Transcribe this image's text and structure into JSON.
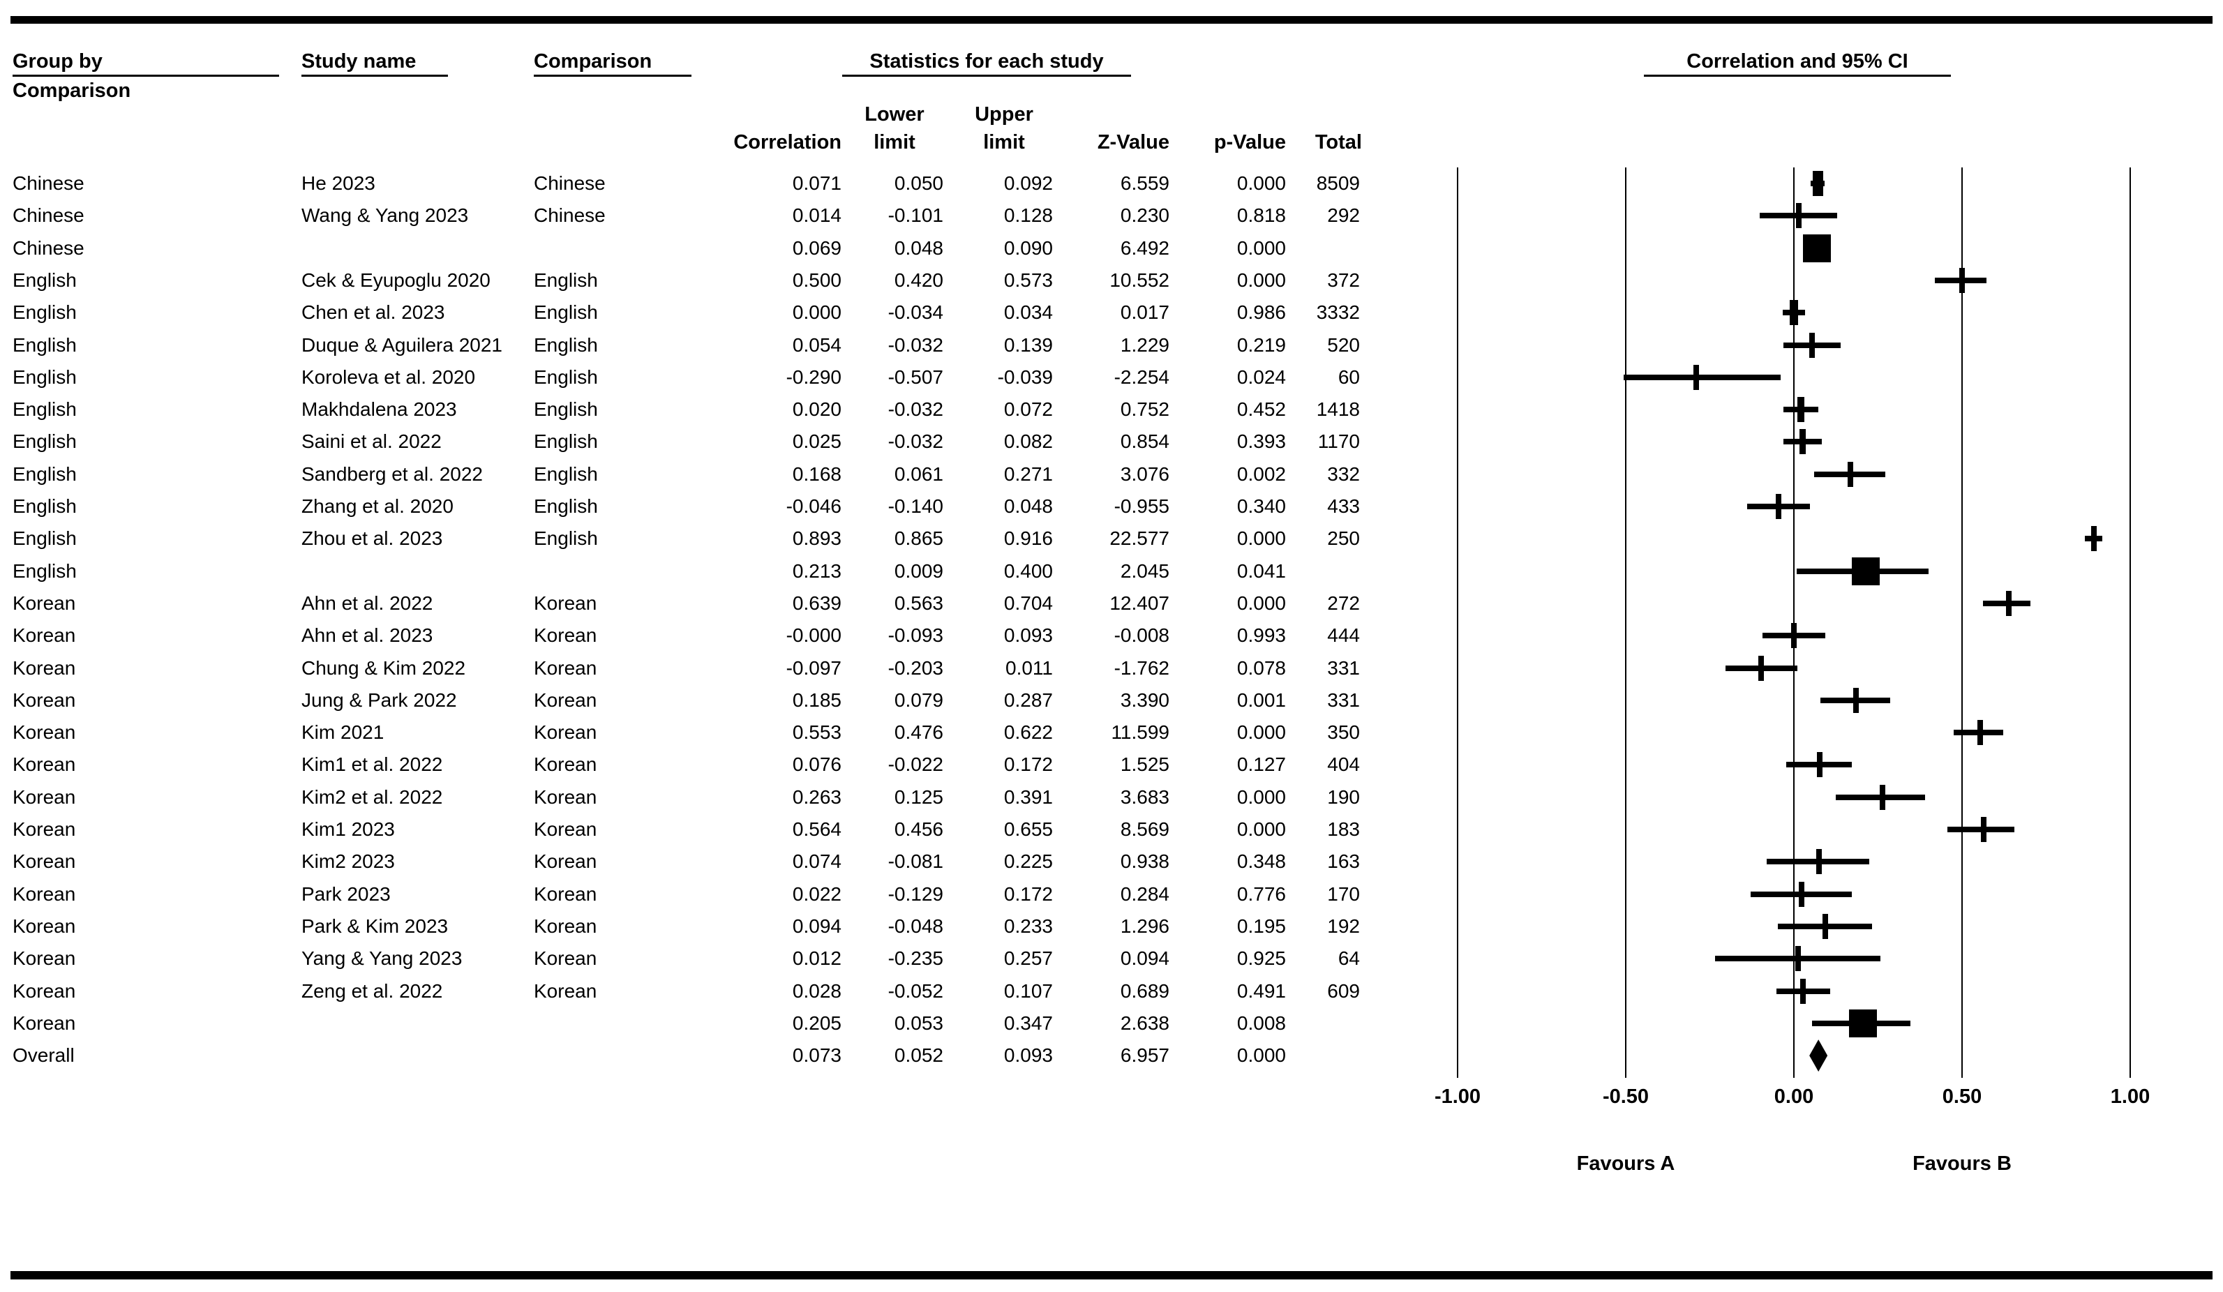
{
  "headers": {
    "group_by_line1": "Group by",
    "group_by_line2": "Comparison",
    "study_name": "Study name",
    "comparison": "Comparison",
    "statistics": "Statistics for each study",
    "plot_title": "Correlation and 95% CI",
    "sub_lower": "Lower",
    "sub_upper": "Upper",
    "col_correlation": "Correlation",
    "col_limit_lower": "limit",
    "col_limit_upper": "limit",
    "col_z": "Z-Value",
    "col_p": "p-Value",
    "col_total": "Total"
  },
  "axis": {
    "tick_labels": [
      "-1.00",
      "-0.50",
      "0.00",
      "0.50",
      "1.00"
    ],
    "tick_values": [
      -1,
      -0.5,
      0,
      0.5,
      1
    ],
    "favours_a": "Favours A",
    "favours_b": "Favours B"
  },
  "colors": {
    "ink": "#000000",
    "background": "#ffffff"
  },
  "chart_data": {
    "type": "forest",
    "title": "Correlation and 95% CI",
    "x_range": [
      -1,
      1
    ],
    "x_ticks": [
      -1.0,
      -0.5,
      0.0,
      0.5,
      1.0
    ],
    "rows": [
      {
        "kind": "study",
        "group": "Chinese",
        "study": "He 2023",
        "comparison": "Chinese",
        "correlation": "0.071",
        "lower": "0.050",
        "upper": "0.092",
        "z": "6.559",
        "p": "0.000",
        "total": "8509"
      },
      {
        "kind": "study",
        "group": "Chinese",
        "study": "Wang & Yang 2023",
        "comparison": "Chinese",
        "correlation": "0.014",
        "lower": "-0.101",
        "upper": "0.128",
        "z": "0.230",
        "p": "0.818",
        "total": "292"
      },
      {
        "kind": "summary",
        "group": "Chinese",
        "study": "",
        "comparison": "",
        "correlation": "0.069",
        "lower": "0.048",
        "upper": "0.090",
        "z": "6.492",
        "p": "0.000",
        "total": ""
      },
      {
        "kind": "study",
        "group": "English",
        "study": "Cek & Eyupoglu 2020",
        "comparison": "English",
        "correlation": "0.500",
        "lower": "0.420",
        "upper": "0.573",
        "z": "10.552",
        "p": "0.000",
        "total": "372"
      },
      {
        "kind": "study",
        "group": "English",
        "study": "Chen et al. 2023",
        "comparison": "English",
        "correlation": "0.000",
        "lower": "-0.034",
        "upper": "0.034",
        "z": "0.017",
        "p": "0.986",
        "total": "3332"
      },
      {
        "kind": "study",
        "group": "English",
        "study": "Duque & Aguilera 2021",
        "comparison": "English",
        "correlation": "0.054",
        "lower": "-0.032",
        "upper": "0.139",
        "z": "1.229",
        "p": "0.219",
        "total": "520"
      },
      {
        "kind": "study",
        "group": "English",
        "study": "Koroleva et al. 2020",
        "comparison": "English",
        "correlation": "-0.290",
        "lower": "-0.507",
        "upper": "-0.039",
        "z": "-2.254",
        "p": "0.024",
        "total": "60"
      },
      {
        "kind": "study",
        "group": "English",
        "study": "Makhdalena 2023",
        "comparison": "English",
        "correlation": "0.020",
        "lower": "-0.032",
        "upper": "0.072",
        "z": "0.752",
        "p": "0.452",
        "total": "1418"
      },
      {
        "kind": "study",
        "group": "English",
        "study": "Saini et al. 2022",
        "comparison": "English",
        "correlation": "0.025",
        "lower": "-0.032",
        "upper": "0.082",
        "z": "0.854",
        "p": "0.393",
        "total": "1170"
      },
      {
        "kind": "study",
        "group": "English",
        "study": "Sandberg et al. 2022",
        "comparison": "English",
        "correlation": "0.168",
        "lower": "0.061",
        "upper": "0.271",
        "z": "3.076",
        "p": "0.002",
        "total": "332"
      },
      {
        "kind": "study",
        "group": "English",
        "study": "Zhang et al. 2020",
        "comparison": "English",
        "correlation": "-0.046",
        "lower": "-0.140",
        "upper": "0.048",
        "z": "-0.955",
        "p": "0.340",
        "total": "433"
      },
      {
        "kind": "study",
        "group": "English",
        "study": "Zhou et al. 2023",
        "comparison": "English",
        "correlation": "0.893",
        "lower": "0.865",
        "upper": "0.916",
        "z": "22.577",
        "p": "0.000",
        "total": "250"
      },
      {
        "kind": "summary",
        "group": "English",
        "study": "",
        "comparison": "",
        "correlation": "0.213",
        "lower": "0.009",
        "upper": "0.400",
        "z": "2.045",
        "p": "0.041",
        "total": ""
      },
      {
        "kind": "study",
        "group": "Korean",
        "study": "Ahn et al. 2022",
        "comparison": "Korean",
        "correlation": "0.639",
        "lower": "0.563",
        "upper": "0.704",
        "z": "12.407",
        "p": "0.000",
        "total": "272"
      },
      {
        "kind": "study",
        "group": "Korean",
        "study": "Ahn et al. 2023",
        "comparison": "Korean",
        "correlation": "-0.000",
        "lower": "-0.093",
        "upper": "0.093",
        "z": "-0.008",
        "p": "0.993",
        "total": "444"
      },
      {
        "kind": "study",
        "group": "Korean",
        "study": "Chung & Kim 2022",
        "comparison": "Korean",
        "correlation": "-0.097",
        "lower": "-0.203",
        "upper": "0.011",
        "z": "-1.762",
        "p": "0.078",
        "total": "331"
      },
      {
        "kind": "study",
        "group": "Korean",
        "study": "Jung & Park 2022",
        "comparison": "Korean",
        "correlation": "0.185",
        "lower": "0.079",
        "upper": "0.287",
        "z": "3.390",
        "p": "0.001",
        "total": "331"
      },
      {
        "kind": "study",
        "group": "Korean",
        "study": "Kim 2021",
        "comparison": "Korean",
        "correlation": "0.553",
        "lower": "0.476",
        "upper": "0.622",
        "z": "11.599",
        "p": "0.000",
        "total": "350"
      },
      {
        "kind": "study",
        "group": "Korean",
        "study": "Kim1 et al. 2022",
        "comparison": "Korean",
        "correlation": "0.076",
        "lower": "-0.022",
        "upper": "0.172",
        "z": "1.525",
        "p": "0.127",
        "total": "404"
      },
      {
        "kind": "study",
        "group": "Korean",
        "study": "Kim2 et al. 2022",
        "comparison": "Korean",
        "correlation": "0.263",
        "lower": "0.125",
        "upper": "0.391",
        "z": "3.683",
        "p": "0.000",
        "total": "190"
      },
      {
        "kind": "study",
        "group": "Korean",
        "study": "Kim1 2023",
        "comparison": "Korean",
        "correlation": "0.564",
        "lower": "0.456",
        "upper": "0.655",
        "z": "8.569",
        "p": "0.000",
        "total": "183"
      },
      {
        "kind": "study",
        "group": "Korean",
        "study": "Kim2 2023",
        "comparison": "Korean",
        "correlation": "0.074",
        "lower": "-0.081",
        "upper": "0.225",
        "z": "0.938",
        "p": "0.348",
        "total": "163"
      },
      {
        "kind": "study",
        "group": "Korean",
        "study": "Park 2023",
        "comparison": "Korean",
        "correlation": "0.022",
        "lower": "-0.129",
        "upper": "0.172",
        "z": "0.284",
        "p": "0.776",
        "total": "170"
      },
      {
        "kind": "study",
        "group": "Korean",
        "study": "Park & Kim 2023",
        "comparison": "Korean",
        "correlation": "0.094",
        "lower": "-0.048",
        "upper": "0.233",
        "z": "1.296",
        "p": "0.195",
        "total": "192"
      },
      {
        "kind": "study",
        "group": "Korean",
        "study": "Yang & Yang 2023",
        "comparison": "Korean",
        "correlation": "0.012",
        "lower": "-0.235",
        "upper": "0.257",
        "z": "0.094",
        "p": "0.925",
        "total": "64"
      },
      {
        "kind": "study",
        "group": "Korean",
        "study": "Zeng et al. 2022",
        "comparison": "Korean",
        "correlation": "0.028",
        "lower": "-0.052",
        "upper": "0.107",
        "z": "0.689",
        "p": "0.491",
        "total": "609"
      },
      {
        "kind": "summary",
        "group": "Korean",
        "study": "",
        "comparison": "",
        "correlation": "0.205",
        "lower": "0.053",
        "upper": "0.347",
        "z": "2.638",
        "p": "0.008",
        "total": ""
      },
      {
        "kind": "overall",
        "group": "Overall",
        "study": "",
        "comparison": "",
        "correlation": "0.073",
        "lower": "0.052",
        "upper": "0.093",
        "z": "6.957",
        "p": "0.000",
        "total": ""
      }
    ]
  }
}
